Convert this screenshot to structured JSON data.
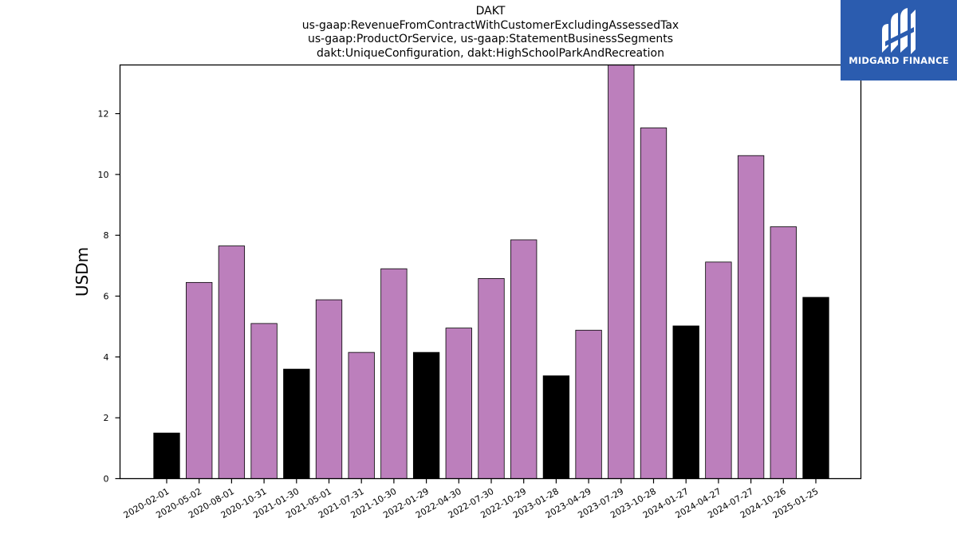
{
  "title_lines": [
    "DAKT",
    "us-gaap:RevenueFromContractWithCustomerExcludingAssessedTax",
    "us-gaap:ProductOrService, us-gaap:StatementBusinessSegments",
    "dakt:UniqueConfiguration, dakt:HighSchoolParkAndRecreation"
  ],
  "logo": {
    "text": "MIDGARD FINANCE",
    "background": "#2b5caf"
  },
  "colors": {
    "quarter": "#bc7fbc",
    "fiscal_year_end": "#000000"
  },
  "chart_data": {
    "type": "bar",
    "ylabel": "USDm",
    "xlabel": "",
    "ylim": [
      0,
      13.6
    ],
    "yticks": [
      0,
      2,
      4,
      6,
      8,
      10,
      12
    ],
    "grid": false,
    "legend": "none",
    "categories": [
      "2020-02-01",
      "2020-05-02",
      "2020-08-01",
      "2020-10-31",
      "2021-01-30",
      "2021-05-01",
      "2021-07-31",
      "2021-10-30",
      "2022-01-29",
      "2022-04-30",
      "2022-07-30",
      "2022-10-29",
      "2023-01-28",
      "2023-04-29",
      "2023-07-29",
      "2023-10-28",
      "2024-01-27",
      "2024-04-27",
      "2024-07-27",
      "2024-10-26",
      "2025-01-25"
    ],
    "values": [
      1.5,
      6.45,
      7.65,
      5.1,
      3.6,
      5.88,
      4.15,
      6.9,
      4.15,
      4.95,
      6.58,
      7.85,
      3.38,
      4.88,
      13.6,
      11.53,
      5.02,
      7.12,
      10.62,
      8.28,
      5.96
    ],
    "fiscal_year_end": [
      true,
      false,
      false,
      false,
      true,
      false,
      false,
      false,
      true,
      false,
      false,
      false,
      true,
      false,
      false,
      false,
      true,
      false,
      false,
      false,
      true
    ]
  }
}
